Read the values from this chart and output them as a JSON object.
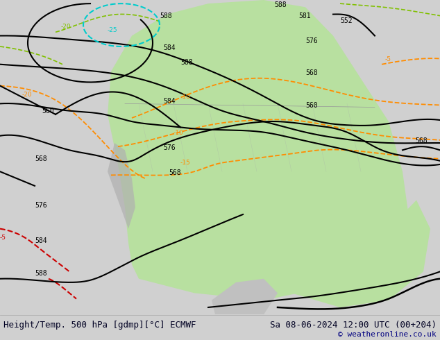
{
  "title_left": "Height/Temp. 500 hPa [gdmp][°C] ECMWF",
  "title_right": "Sa 08-06-2024 12:00 UTC (00+204)",
  "copyright": "© weatheronline.co.uk",
  "fig_width": 6.34,
  "fig_height": 4.9,
  "dpi": 100,
  "bg_color": "#d0d0d0",
  "map_bg": "#d8d8d8",
  "land_green": "#b8e0a0",
  "land_dark": "#a0a0a0",
  "border_color": "#888888",
  "contour_black": "#000000",
  "contour_orange": "#ff8c00",
  "contour_green": "#80c000",
  "contour_cyan": "#00cccc",
  "contour_red": "#cc0000",
  "bottom_bar_color": "#e8e8e8",
  "bottom_text_color": "#000022",
  "copyright_color": "#000080",
  "font_size_bottom": 9,
  "font_size_labels": 8
}
